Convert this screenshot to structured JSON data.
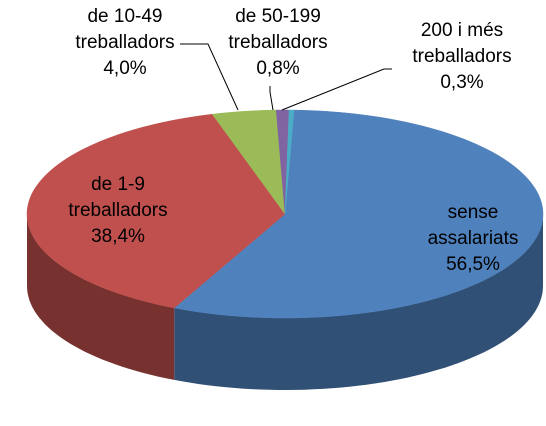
{
  "chart_data": {
    "type": "pie3d",
    "categories": [
      "sense assalariats",
      "de 1-9 treballadors",
      "de 10-49 treballadors",
      "de 50-199 treballadors",
      "200 i més treballadors"
    ],
    "values": [
      56.5,
      38.4,
      4.0,
      0.8,
      0.3
    ],
    "value_labels": [
      "56,5%",
      "38,4%",
      "4,0%",
      "0,8%",
      "0,3%"
    ],
    "colors": [
      "#4f81bd",
      "#c0504d",
      "#9bbb59",
      "#8064a2",
      "#4bacc6"
    ]
  }
}
